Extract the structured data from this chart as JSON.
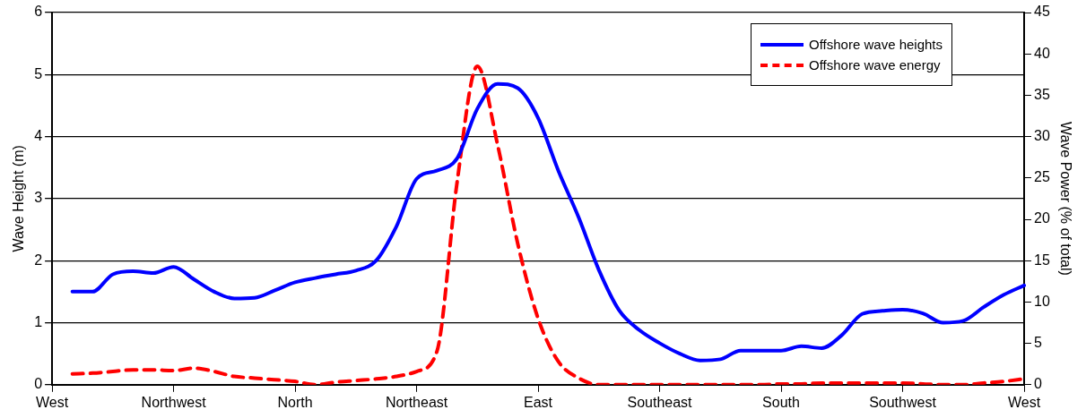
{
  "chart_data": {
    "type": "line",
    "ylabel": "Wave Height (m)",
    "y2label": "Wave Power (% of total)",
    "categories": [
      "West",
      null,
      null,
      null,
      null,
      null,
      "Northwest",
      null,
      null,
      null,
      null,
      null,
      "North",
      null,
      null,
      null,
      null,
      null,
      "Northeast",
      null,
      null,
      null,
      null,
      null,
      "East",
      null,
      null,
      null,
      null,
      null,
      "Southeast",
      null,
      null,
      null,
      null,
      null,
      "South",
      null,
      null,
      null,
      null,
      null,
      "Southwest",
      null,
      null,
      null,
      null,
      null,
      "West"
    ],
    "ylim": [
      0,
      6
    ],
    "yticks": [
      0,
      1,
      2,
      3,
      4,
      5,
      6
    ],
    "y2lim": [
      0,
      45
    ],
    "y2ticks": [
      0,
      5,
      10,
      15,
      20,
      25,
      30,
      35,
      40,
      45
    ],
    "grid": "y",
    "legend": "top right",
    "marker": "none",
    "series": [
      {
        "name": "Offshore wave heights",
        "color": "#0000ff",
        "line_style": "solid",
        "values": [
          null,
          1.5,
          1.5,
          1.78,
          1.83,
          1.8,
          1.9,
          1.7,
          1.5,
          1.39,
          1.4,
          1.52,
          1.65,
          1.72,
          1.78,
          1.84,
          2.0,
          2.55,
          3.32,
          3.45,
          3.65,
          4.45,
          4.85,
          4.78,
          4.3,
          3.45,
          2.7,
          1.85,
          1.2,
          0.88,
          0.67,
          0.5,
          0.39,
          0.41,
          0.55,
          0.55,
          0.55,
          0.62,
          0.59,
          0.8,
          1.14,
          1.19,
          1.21,
          1.15,
          1.0,
          1.03,
          1.25,
          1.45,
          1.6
        ]
      },
      {
        "name": "Offshore wave energy",
        "color": "#ff0000",
        "line_style": "dashed",
        "axis": "y2",
        "values": [
          null,
          1.3,
          1.4,
          1.6,
          1.8,
          1.8,
          1.7,
          2.0,
          1.6,
          1.0,
          0.8,
          0.6,
          0.4,
          0,
          0.3,
          0.5,
          0.7,
          1.0,
          1.6,
          4.0,
          24.5,
          38.5,
          29,
          17,
          8,
          2.8,
          0.8,
          0,
          0,
          0,
          0,
          0,
          0,
          0,
          0,
          0,
          0.1,
          0.1,
          0.2,
          0.2,
          0.2,
          0.2,
          0.2,
          0.1,
          0,
          0,
          0.2,
          0.4,
          0.7
        ]
      }
    ]
  }
}
